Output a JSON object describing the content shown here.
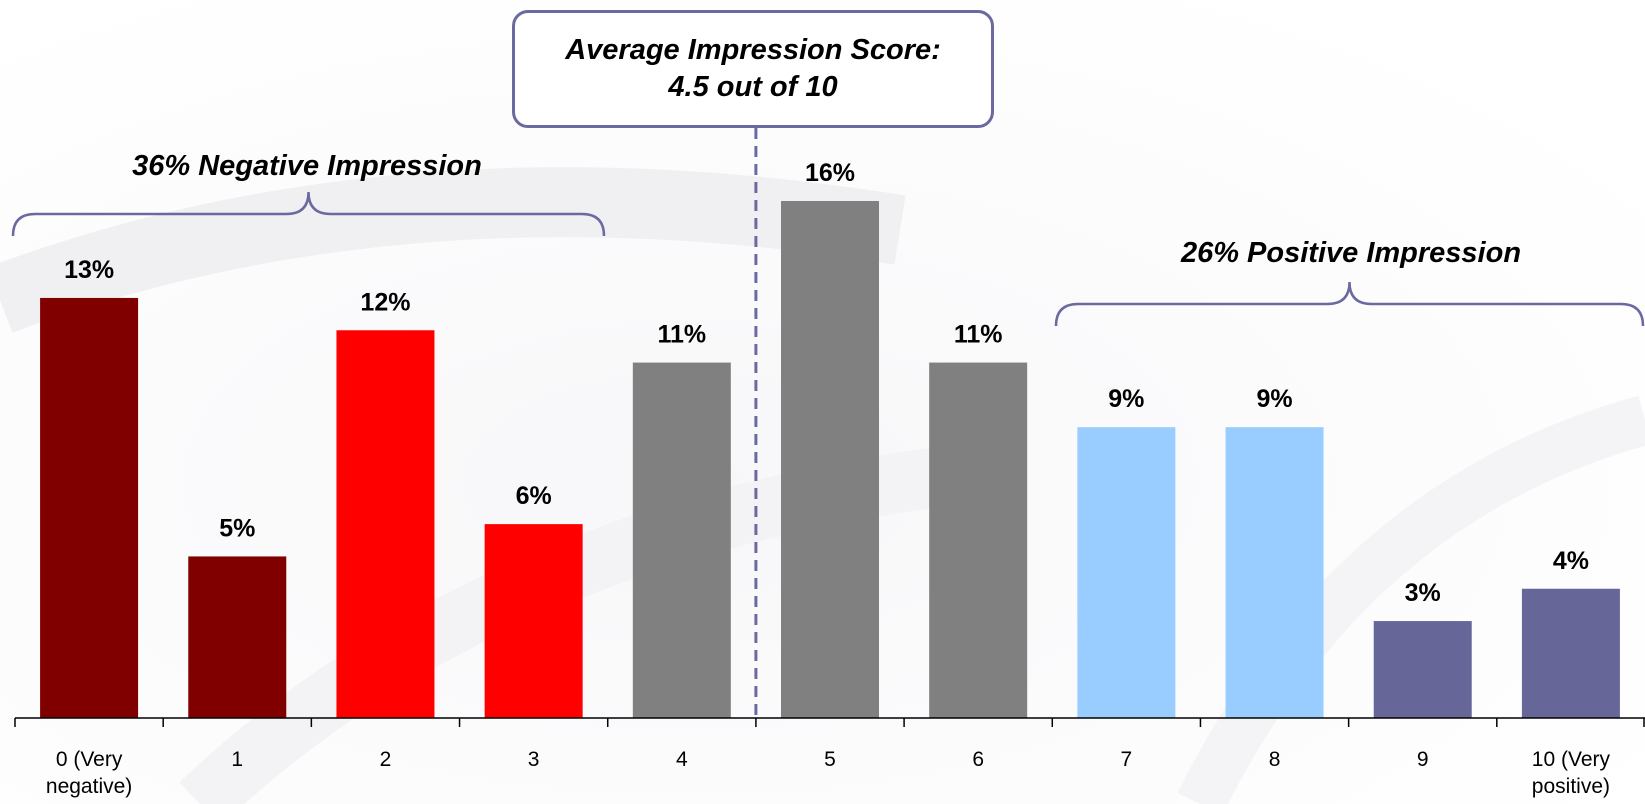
{
  "chart_data": {
    "type": "bar",
    "categories": [
      "0 (Very negative)",
      "1",
      "2",
      "3",
      "4",
      "5",
      "6",
      "7",
      "8",
      "9",
      "10 (Very positive)"
    ],
    "category_lines": [
      [
        "0 (Very",
        "negative)"
      ],
      [
        "1"
      ],
      [
        "2"
      ],
      [
        "3"
      ],
      [
        "4"
      ],
      [
        "5"
      ],
      [
        "6"
      ],
      [
        "7"
      ],
      [
        "8"
      ],
      [
        "9"
      ],
      [
        "10 (Very",
        "positive)"
      ]
    ],
    "values": [
      13,
      5,
      12,
      6,
      11,
      16,
      11,
      9,
      9,
      3,
      4
    ],
    "value_labels": [
      "13%",
      "5%",
      "12%",
      "6%",
      "11%",
      "16%",
      "11%",
      "9%",
      "9%",
      "3%",
      "4%"
    ],
    "bar_colors": [
      "#800000",
      "#800000",
      "#ff0000",
      "#ff0000",
      "#808080",
      "#808080",
      "#808080",
      "#99ccff",
      "#99ccff",
      "#666699",
      "#666699"
    ],
    "ylim": [
      0,
      16
    ],
    "grid": false,
    "average_marker": 4.5,
    "annotations": {
      "score_line1": "Average Impression Score:",
      "score_line2": "4.5 out of 10",
      "negative": "36% Negative Impression",
      "positive": "26% Positive Impression"
    }
  },
  "colors": {
    "annotation": "#6a6aa0",
    "axis": "#000000"
  }
}
